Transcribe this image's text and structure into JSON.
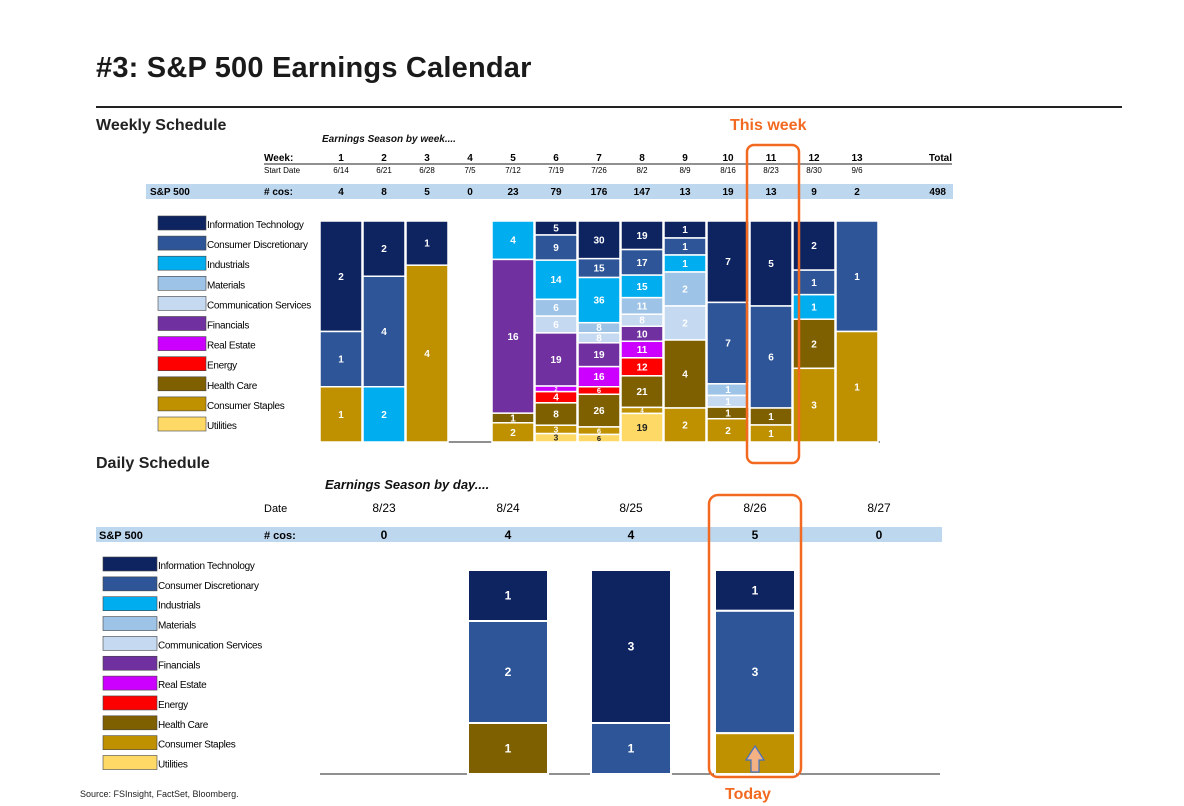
{
  "title": "#3: S&P 500 Earnings Calendar",
  "weekly_heading": "Weekly Schedule",
  "daily_heading": "Daily Schedule",
  "source": "Source: FSInsight, FactSet, Bloomberg.",
  "annotations": {
    "this_week": "This week",
    "today": "Today"
  },
  "highlight_color": "#f26a21",
  "sectors": [
    {
      "name": "Information Technology",
      "color": "#0d2461"
    },
    {
      "name": "Consumer Discretionary",
      "color": "#2d5597"
    },
    {
      "name": "Industrials",
      "color": "#00aeef"
    },
    {
      "name": "Materials",
      "color": "#9dc3e6"
    },
    {
      "name": "Communication Services",
      "color": "#c5d9f1"
    },
    {
      "name": "Financials",
      "color": "#7030a0"
    },
    {
      "name": "Real Estate",
      "color": "#cc00ff"
    },
    {
      "name": "Energy",
      "color": "#ff0000"
    },
    {
      "name": "Health Care",
      "color": "#7f6000"
    },
    {
      "name": "Consumer Staples",
      "color": "#bf9000"
    },
    {
      "name": "Utilities",
      "color": "#ffd966"
    }
  ],
  "chart_data": [
    {
      "type": "bar",
      "stacked": "percent",
      "subtitle": "Earnings Season by week....",
      "row_labels": {
        "week": "Week:",
        "start": "Start Date",
        "index": "S&P 500",
        "count": "# cos:",
        "total": "Total"
      },
      "weeks": [
        "1",
        "2",
        "3",
        "4",
        "5",
        "6",
        "7",
        "8",
        "9",
        "10",
        "11",
        "12",
        "13"
      ],
      "start_dates": [
        "6/14",
        "6/21",
        "6/28",
        "7/5",
        "7/12",
        "7/19",
        "7/26",
        "8/2",
        "8/9",
        "8/16",
        "8/23",
        "8/30",
        "9/6"
      ],
      "counts": [
        "4",
        "8",
        "5",
        "0",
        "23",
        "79",
        "176",
        "147",
        "13",
        "19",
        "13",
        "9",
        "2"
      ],
      "total": "498",
      "highlight_week": "11",
      "series": [
        {
          "name": "Information Technology",
          "values": [
            2,
            2,
            1,
            0,
            0,
            5,
            30,
            19,
            1,
            7,
            5,
            2,
            0
          ]
        },
        {
          "name": "Consumer Discretionary",
          "values": [
            1,
            4,
            0,
            0,
            0,
            9,
            15,
            17,
            1,
            7,
            6,
            1,
            1
          ]
        },
        {
          "name": "Industrials",
          "values": [
            0,
            2,
            0,
            0,
            4,
            14,
            36,
            15,
            1,
            0,
            0,
            1,
            0
          ]
        },
        {
          "name": "Materials",
          "values": [
            0,
            0,
            0,
            0,
            0,
            6,
            8,
            11,
            2,
            1,
            0,
            0,
            0
          ]
        },
        {
          "name": "Communication Services",
          "values": [
            0,
            0,
            0,
            0,
            0,
            6,
            8,
            8,
            2,
            1,
            0,
            0,
            0
          ]
        },
        {
          "name": "Financials",
          "values": [
            0,
            0,
            0,
            0,
            16,
            19,
            19,
            10,
            0,
            0,
            0,
            0,
            0
          ]
        },
        {
          "name": "Real Estate",
          "values": [
            0,
            0,
            0,
            0,
            0,
            2,
            16,
            11,
            0,
            0,
            0,
            0,
            0
          ]
        },
        {
          "name": "Energy",
          "values": [
            0,
            0,
            0,
            0,
            0,
            4,
            6,
            12,
            0,
            0,
            0,
            0,
            0
          ]
        },
        {
          "name": "Health Care",
          "values": [
            0,
            0,
            0,
            0,
            1,
            8,
            26,
            21,
            4,
            1,
            1,
            2,
            0
          ]
        },
        {
          "name": "Consumer Staples",
          "values": [
            1,
            0,
            4,
            0,
            2,
            3,
            6,
            4,
            2,
            2,
            1,
            3,
            1
          ]
        },
        {
          "name": "Utilities",
          "values": [
            0,
            0,
            0,
            0,
            0,
            3,
            6,
            19,
            0,
            0,
            0,
            0,
            0
          ]
        }
      ]
    },
    {
      "type": "bar",
      "stacked": "value",
      "subtitle": "Earnings Season by day....",
      "row_labels": {
        "date": "Date",
        "index": "S&P 500",
        "count": "# cos:"
      },
      "dates": [
        "8/23",
        "8/24",
        "8/25",
        "8/26",
        "8/27"
      ],
      "counts": [
        "0",
        "4",
        "4",
        "5",
        "0"
      ],
      "highlight_date": "8/26",
      "series": [
        {
          "name": "Information Technology",
          "values": [
            0,
            1,
            3,
            1,
            0
          ]
        },
        {
          "name": "Consumer Discretionary",
          "values": [
            0,
            2,
            1,
            3,
            0
          ]
        },
        {
          "name": "Industrials",
          "values": [
            0,
            0,
            0,
            0,
            0
          ]
        },
        {
          "name": "Materials",
          "values": [
            0,
            0,
            0,
            0,
            0
          ]
        },
        {
          "name": "Communication Services",
          "values": [
            0,
            0,
            0,
            0,
            0
          ]
        },
        {
          "name": "Financials",
          "values": [
            0,
            0,
            0,
            0,
            0
          ]
        },
        {
          "name": "Real Estate",
          "values": [
            0,
            0,
            0,
            0,
            0
          ]
        },
        {
          "name": "Energy",
          "values": [
            0,
            0,
            0,
            0,
            0
          ]
        },
        {
          "name": "Health Care",
          "values": [
            0,
            1,
            0,
            0,
            0
          ]
        },
        {
          "name": "Consumer Staples",
          "values": [
            0,
            0,
            0,
            1,
            0
          ]
        },
        {
          "name": "Utilities",
          "values": [
            0,
            0,
            0,
            0,
            0
          ]
        }
      ]
    }
  ]
}
